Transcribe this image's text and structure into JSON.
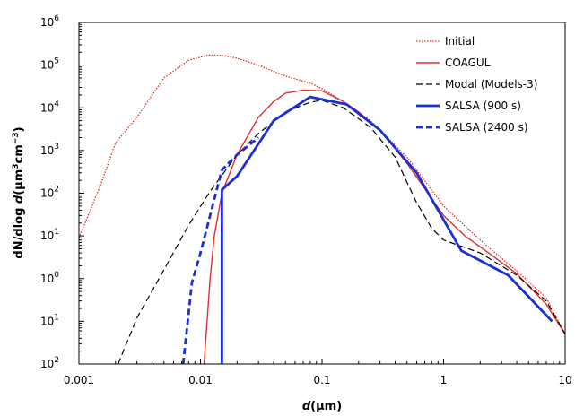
{
  "chart_data": {
    "type": "line",
    "xlabel_prefix": "d",
    "xlabel_suffix": "(μm)",
    "ylabel_parts": [
      "dN/dlog ",
      "d",
      "(μm",
      "3",
      "cm",
      "−3",
      ")"
    ],
    "x_scale": "log",
    "y_scale": "log",
    "xlim": [
      0.001,
      10
    ],
    "ylim": [
      0.01,
      1000000
    ],
    "x_ticks": [
      {
        "value": 0.001,
        "label": "0.001"
      },
      {
        "value": 0.01,
        "label": "0.01"
      },
      {
        "value": 0.1,
        "label": "0.1"
      },
      {
        "value": 1,
        "label": "1"
      },
      {
        "value": 10,
        "label": "10"
      }
    ],
    "y_ticks": [
      {
        "value": 1000000,
        "base": "10",
        "exp": "6"
      },
      {
        "value": 100000,
        "base": "10",
        "exp": "5"
      },
      {
        "value": 10000,
        "base": "10",
        "exp": "4"
      },
      {
        "value": 1000,
        "base": "10",
        "exp": "3"
      },
      {
        "value": 100,
        "base": "10",
        "exp": "2"
      },
      {
        "value": 10,
        "base": "10",
        "exp": "1"
      },
      {
        "value": 1,
        "base": "10",
        "exp": "0"
      },
      {
        "value": 0.1,
        "base": "10",
        "exp": "1"
      },
      {
        "value": 0.01,
        "base": "10",
        "exp": "2"
      }
    ],
    "legend_position": "top-right",
    "grid": false,
    "series": [
      {
        "name": "Initial",
        "color": "#e0302c",
        "style": "dotted",
        "width": 1.3,
        "points": [
          [
            0.001,
            9
          ],
          [
            0.0015,
            150
          ],
          [
            0.002,
            1500
          ],
          [
            0.003,
            6000
          ],
          [
            0.005,
            50000
          ],
          [
            0.008,
            130000
          ],
          [
            0.012,
            175000
          ],
          [
            0.016,
            165000
          ],
          [
            0.02,
            145000
          ],
          [
            0.03,
            100000
          ],
          [
            0.05,
            55000
          ],
          [
            0.08,
            38000
          ],
          [
            0.1,
            28000
          ],
          [
            0.15,
            14000
          ],
          [
            0.25,
            5000
          ],
          [
            0.5,
            700
          ],
          [
            1,
            50
          ],
          [
            2,
            8
          ],
          [
            4,
            1.5
          ],
          [
            7,
            0.35
          ],
          [
            10,
            0.05
          ]
        ]
      },
      {
        "name": "COAGUL",
        "color": "#e0302c",
        "style": "solid",
        "width": 1.4,
        "points": [
          [
            0.0107,
            0.01
          ],
          [
            0.012,
            1
          ],
          [
            0.013,
            10
          ],
          [
            0.015,
            100
          ],
          [
            0.02,
            800
          ],
          [
            0.03,
            6000
          ],
          [
            0.04,
            14000
          ],
          [
            0.05,
            22000
          ],
          [
            0.07,
            26000
          ],
          [
            0.1,
            25000
          ],
          [
            0.15,
            14000
          ],
          [
            0.2,
            8000
          ],
          [
            0.3,
            3000
          ],
          [
            0.5,
            500
          ],
          [
            1,
            30
          ],
          [
            1.5,
            10
          ],
          [
            2.5,
            3.5
          ],
          [
            4,
            1.3
          ],
          [
            7,
            0.25
          ],
          [
            10,
            0.05
          ]
        ]
      },
      {
        "name": "Modal (Models-3)",
        "color": "#000000",
        "style": "dashed",
        "width": 1.2,
        "points": [
          [
            0.0021,
            0.01
          ],
          [
            0.003,
            0.12
          ],
          [
            0.005,
            1.6
          ],
          [
            0.008,
            18
          ],
          [
            0.012,
            110
          ],
          [
            0.02,
            800
          ],
          [
            0.03,
            2500
          ],
          [
            0.05,
            8000
          ],
          [
            0.08,
            13500
          ],
          [
            0.1,
            15000
          ],
          [
            0.15,
            10000
          ],
          [
            0.25,
            3500
          ],
          [
            0.4,
            700
          ],
          [
            0.6,
            60
          ],
          [
            0.8,
            15
          ],
          [
            1,
            8
          ],
          [
            2,
            4
          ],
          [
            4,
            1.2
          ],
          [
            7,
            0.3
          ],
          [
            10,
            0.05
          ]
        ]
      },
      {
        "name": "SALSA  (900 s)",
        "color": "#1f2fd6",
        "style": "solid",
        "width": 2.8,
        "points": [
          [
            0.015,
            0.01
          ],
          [
            0.015,
            120
          ],
          [
            0.02,
            250
          ],
          [
            0.04,
            5000
          ],
          [
            0.08,
            18000
          ],
          [
            0.16,
            12000
          ],
          [
            0.3,
            3000
          ],
          [
            0.6,
            300
          ],
          [
            1.4,
            4.5
          ],
          [
            3.4,
            1.2
          ],
          [
            7.8,
            0.1
          ]
        ]
      },
      {
        "name": "SALSA  (2400 s)",
        "color": "#1f2fd6",
        "style": "dashed",
        "width": 2.8,
        "points": [
          [
            0.0072,
            0.01
          ],
          [
            0.0085,
            0.8
          ],
          [
            0.01,
            4
          ],
          [
            0.012,
            30
          ],
          [
            0.015,
            350
          ],
          [
            0.02,
            800
          ],
          [
            0.03,
            2000
          ]
        ]
      }
    ]
  }
}
